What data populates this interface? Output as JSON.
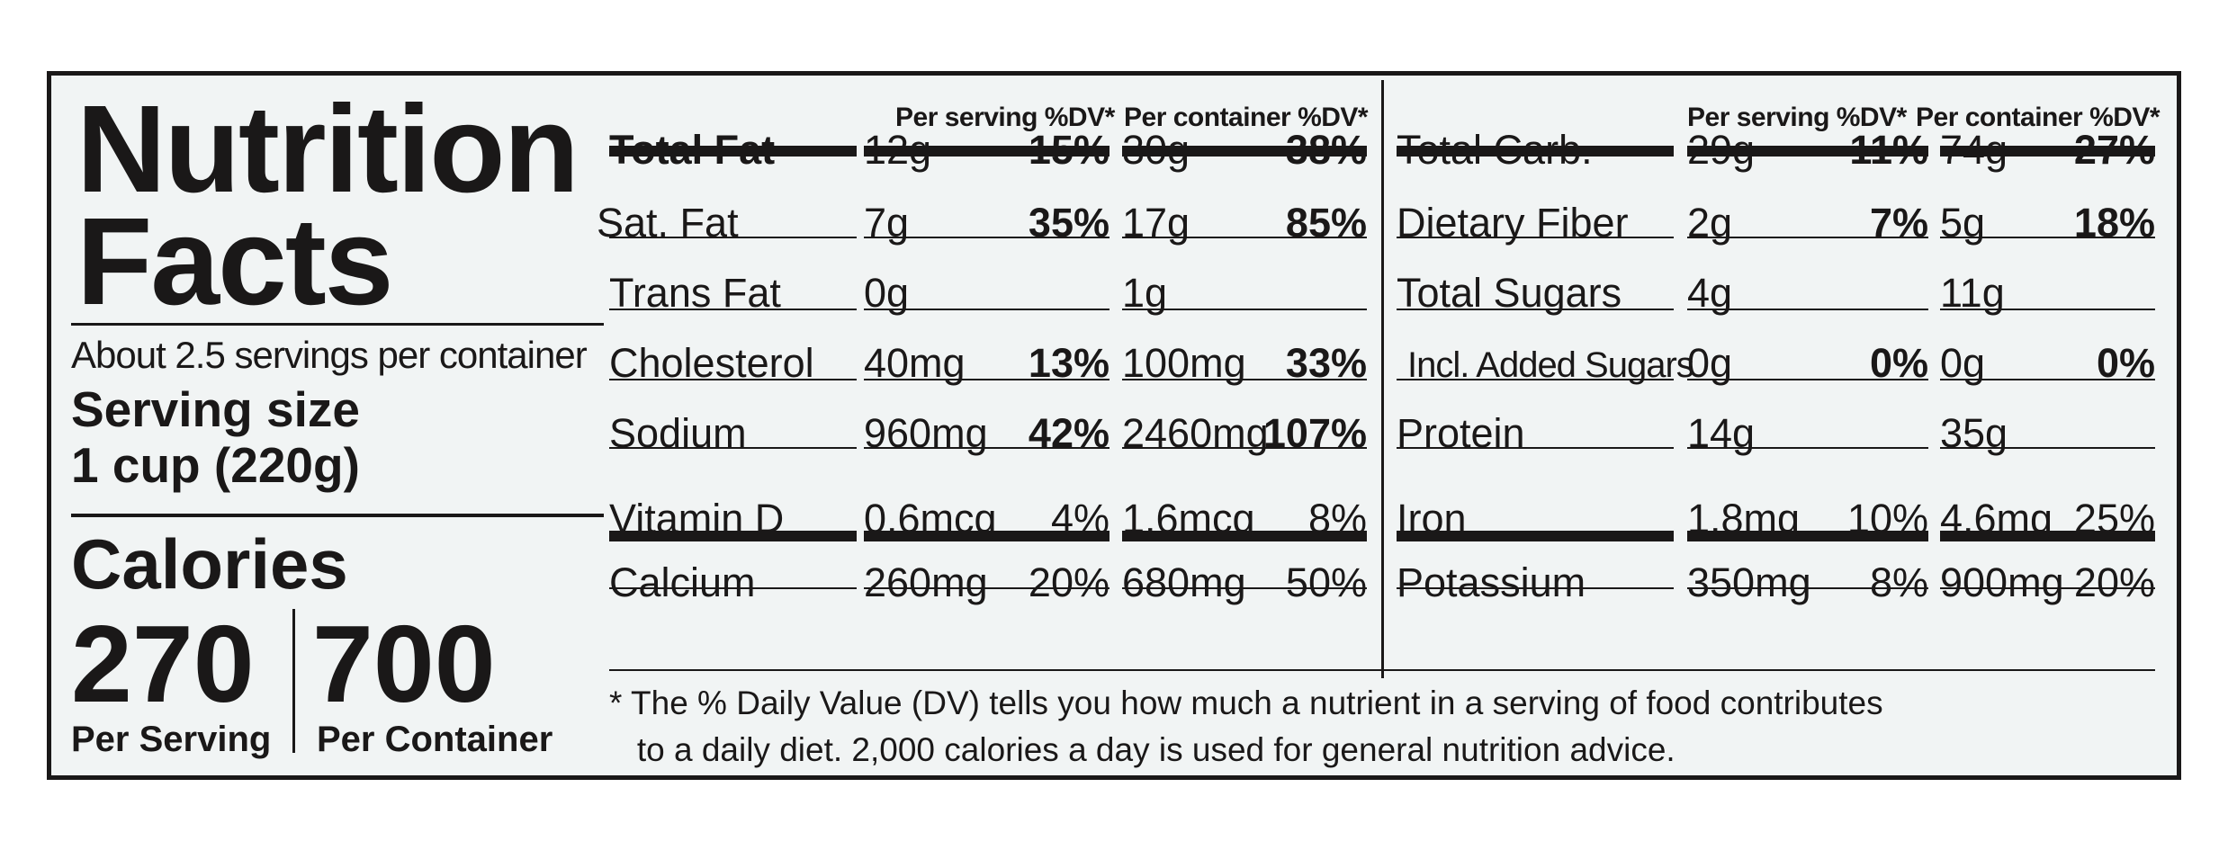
{
  "label": {
    "title_line1": "Nutrition",
    "title_line2": "Facts",
    "servings_per_container": "About  2.5 servings per container",
    "serving_size_label": "Serving size",
    "serving_size_value": "1 cup (220g)",
    "calories_label": "Calories",
    "calories_per_serving": "270",
    "calories_per_container": "700",
    "per_serving_caption": "Per Serving",
    "per_container_caption": "Per Container",
    "col_header_serving": "Per serving %DV*",
    "col_header_container": "Per container %DV*",
    "left_table": [
      {
        "name": "Total Fat",
        "bold": true,
        "s_amt": "12g",
        "s_dv": "15%",
        "c_amt": "30g",
        "c_dv": "38%"
      },
      {
        "name": "Sat. Fat",
        "bold": false,
        "s_amt": "7g",
        "s_dv": "35%",
        "c_amt": "17g",
        "c_dv": "85%"
      },
      {
        "name": "Trans Fat",
        "bold": false,
        "s_amt": "0g",
        "s_dv": "",
        "c_amt": "1g",
        "c_dv": ""
      },
      {
        "name": "Cholesterol",
        "bold": false,
        "s_amt": "40mg",
        "s_dv": "13%",
        "c_amt": "100mg",
        "c_dv": "33%"
      },
      {
        "name": "Sodium",
        "bold": false,
        "s_amt": "960mg",
        "s_dv": "42%",
        "c_amt": "2460mg",
        "c_dv": "107%"
      },
      {
        "name": "Vitamin D",
        "bold": false,
        "s_amt": "0.6mcg",
        "s_dv": "4%",
        "c_amt": "1.6mcg",
        "c_dv": "8%"
      },
      {
        "name": "Calcium",
        "bold": false,
        "s_amt": "260mg",
        "s_dv": "20%",
        "c_amt": "680mg",
        "c_dv": "50%"
      }
    ],
    "right_table": [
      {
        "name": "Total Carb.",
        "s_amt": "29g",
        "s_dv": "11%",
        "c_amt": "74g",
        "c_dv": "27%"
      },
      {
        "name": "Dietary Fiber",
        "s_amt": "2g",
        "s_dv": "7%",
        "c_amt": "5g",
        "c_dv": "18%"
      },
      {
        "name": "Total Sugars",
        "s_amt": "4g",
        "s_dv": "",
        "c_amt": "11g",
        "c_dv": ""
      },
      {
        "name": "Incl. Added Sugars",
        "s_amt": "0g",
        "s_dv": "0%",
        "c_amt": "0g",
        "c_dv": "0%"
      },
      {
        "name": "Protein",
        "s_amt": "14g",
        "s_dv": "",
        "c_amt": "35g",
        "c_dv": ""
      },
      {
        "name": "Iron",
        "s_amt": "1.8mg",
        "s_dv": "10%",
        "c_amt": "4.6mg",
        "c_dv": "25%"
      },
      {
        "name": "Potassium",
        "s_amt": "350mg",
        "s_dv": "8%",
        "c_amt": "900mg",
        "c_dv": "20%"
      }
    ],
    "footnote": "* The % Daily Value (DV) tells you how much a nutrient in a serving of food contributes\n   to a daily diet. 2,000 calories a day is used for general nutrition advice."
  }
}
